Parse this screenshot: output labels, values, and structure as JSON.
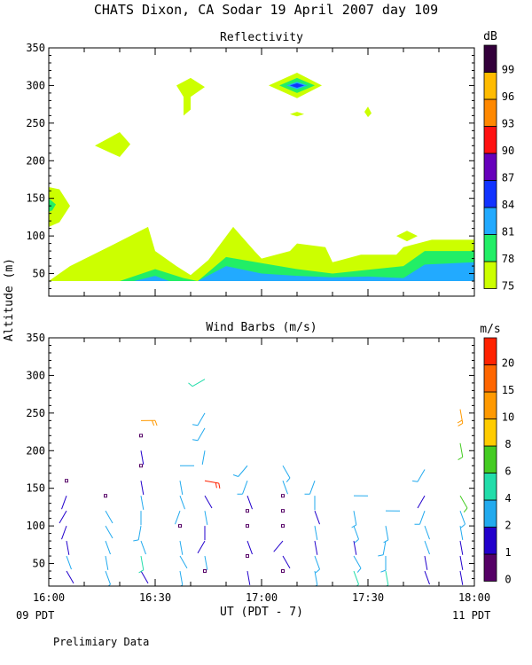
{
  "page": {
    "title": "CHATS Dixon, CA  Sodar  19 April 2007  day 109",
    "ylabel": "Altitude (m)",
    "xlabel": "UT  (PDT - 7)",
    "start_local": "09 PDT",
    "end_local": "11 PDT",
    "footer": "Prelimiary Data"
  },
  "colors": {
    "reflectivity": [
      "#ccff00",
      "#22ee66",
      "#22aaff",
      "#1133ff",
      "#6600bb",
      "#ff1111",
      "#ff8800",
      "#ffbb00",
      "#33003b"
    ],
    "wind": [
      "#550066",
      "#2200cc",
      "#22aaee",
      "#22ddaa",
      "#44cc22",
      "#ffcc00",
      "#ff9900",
      "#ff6600",
      "#ff2200",
      "#ff4400"
    ]
  },
  "chart_data": [
    {
      "type": "heatmap",
      "title": "Reflectivity",
      "colorbar_unit": "dB",
      "colorbar_levels": [
        "75",
        "78",
        "81",
        "84",
        "87",
        "90",
        "93",
        "96",
        "99"
      ],
      "x_ticks": [
        "16:00",
        "16:30",
        "17:00",
        "17:30",
        "18:00"
      ],
      "y_ticks": [
        "50",
        "100",
        "150",
        "200",
        "250",
        "300",
        "350"
      ],
      "xlim": [
        "16:00",
        "18:00"
      ],
      "ylim": [
        20,
        350
      ],
      "regions": [
        {
          "level": 0,
          "points": [
            [
              0,
              40
            ],
            [
              6,
              60
            ],
            [
              18,
              88
            ],
            [
              28,
              112
            ],
            [
              30,
              80
            ],
            [
              36,
              60
            ],
            [
              40,
              48
            ],
            [
              45,
              68
            ],
            [
              52,
              112
            ],
            [
              58,
              80
            ],
            [
              60,
              70
            ],
            [
              68,
              80
            ],
            [
              70,
              90
            ],
            [
              78,
              85
            ],
            [
              80,
              65
            ],
            [
              88,
              75
            ],
            [
              98,
              75
            ],
            [
              100,
              85
            ],
            [
              108,
              95
            ],
            [
              120,
              95
            ],
            [
              120,
              40
            ]
          ]
        },
        {
          "level": 0,
          "points": [
            [
              0,
              112
            ],
            [
              0,
              165
            ],
            [
              3,
              162
            ],
            [
              6,
              140
            ],
            [
              3,
              118
            ]
          ]
        },
        {
          "level": 0,
          "points": [
            [
              13,
              220
            ],
            [
              20,
              238
            ],
            [
              23,
              222
            ],
            [
              20,
              205
            ]
          ]
        },
        {
          "level": 0,
          "points": [
            [
              36,
              300
            ],
            [
              40,
              310
            ],
            [
              44,
              298
            ],
            [
              40,
              285
            ],
            [
              40,
              268
            ],
            [
              38,
              260
            ],
            [
              38,
              285
            ]
          ]
        },
        {
          "level": 0,
          "points": [
            [
              62,
              300
            ],
            [
              70,
              317
            ],
            [
              77,
              300
            ],
            [
              70,
              283
            ]
          ]
        },
        {
          "level": 0,
          "points": [
            [
              68,
              262
            ],
            [
              70,
              265
            ],
            [
              72,
              262
            ],
            [
              70,
              259
            ]
          ]
        },
        {
          "level": 0,
          "points": [
            [
              89,
              265
            ],
            [
              90,
              272
            ],
            [
              91,
              263
            ],
            [
              90,
              258
            ]
          ]
        },
        {
          "level": 0,
          "points": [
            [
              98,
              100
            ],
            [
              101,
              107
            ],
            [
              104,
              100
            ],
            [
              101,
              93
            ]
          ]
        },
        {
          "level": 1,
          "points": [
            [
              20,
              40
            ],
            [
              30,
              56
            ],
            [
              38,
              44
            ],
            [
              42,
              40
            ],
            [
              50,
              72
            ],
            [
              60,
              64
            ],
            [
              70,
              56
            ],
            [
              80,
              50
            ],
            [
              90,
              55
            ],
            [
              100,
              60
            ],
            [
              106,
              80
            ],
            [
              120,
              80
            ],
            [
              120,
              40
            ]
          ]
        },
        {
          "level": 1,
          "points": [
            [
              0,
              132
            ],
            [
              0,
              150
            ],
            [
              2,
              142
            ],
            [
              1,
              134
            ]
          ]
        },
        {
          "level": 1,
          "points": [
            [
              65,
              300
            ],
            [
              70,
              310
            ],
            [
              75,
              300
            ],
            [
              70,
              290
            ]
          ]
        },
        {
          "level": 2,
          "points": [
            [
              24,
              40
            ],
            [
              30,
              47
            ],
            [
              34,
              40
            ],
            [
              42,
              40
            ],
            [
              50,
              60
            ],
            [
              60,
              50
            ],
            [
              70,
              47
            ],
            [
              80,
              45
            ],
            [
              90,
              46
            ],
            [
              100,
              44
            ],
            [
              106,
              62
            ],
            [
              120,
              65
            ],
            [
              120,
              40
            ]
          ]
        },
        {
          "level": 2,
          "points": [
            [
              67,
              300
            ],
            [
              70,
              305
            ],
            [
              73,
              300
            ],
            [
              70,
              295
            ]
          ]
        },
        {
          "level": 3,
          "points": [
            [
              68,
              300
            ],
            [
              70,
              303
            ],
            [
              72,
              300
            ],
            [
              70,
              297
            ]
          ]
        }
      ]
    },
    {
      "type": "scatter",
      "title": "Wind Barbs (m/s)",
      "colorbar_unit": "m/s",
      "colorbar_levels": [
        "0",
        "1",
        "2",
        "4",
        "6",
        "8",
        "10",
        "15",
        "20"
      ],
      "x_ticks": [
        "16:00",
        "16:30",
        "17:00",
        "17:30",
        "18:00"
      ],
      "y_ticks": [
        "50",
        "100",
        "150",
        "200",
        "250",
        "300",
        "350"
      ],
      "xlim": [
        "16:00",
        "18:00"
      ],
      "ylim": [
        20,
        350
      ],
      "barbs": [
        {
          "t": 5,
          "z": 40,
          "dir": 150,
          "speed": 1.5
        },
        {
          "t": 5,
          "z": 60,
          "dir": 160,
          "speed": 2.5
        },
        {
          "t": 5,
          "z": 80,
          "dir": 170,
          "speed": 1.5
        },
        {
          "t": 5,
          "z": 100,
          "dir": 200,
          "speed": 1.5
        },
        {
          "t": 5,
          "z": 120,
          "dir": 210,
          "speed": 1.5
        },
        {
          "t": 5,
          "z": 140,
          "dir": 200,
          "speed": 1.5
        },
        {
          "t": 5,
          "z": 160,
          "dir": 0,
          "speed": 0.5
        },
        {
          "t": 16,
          "z": 40,
          "dir": 160,
          "speed": 3
        },
        {
          "t": 16,
          "z": 60,
          "dir": 170,
          "speed": 2.5
        },
        {
          "t": 16,
          "z": 80,
          "dir": 160,
          "speed": 2.5
        },
        {
          "t": 16,
          "z": 100,
          "dir": 150,
          "speed": 2
        },
        {
          "t": 16,
          "z": 120,
          "dir": 150,
          "speed": 2
        },
        {
          "t": 16,
          "z": 140,
          "dir": 0,
          "speed": 0.5
        },
        {
          "t": 26,
          "z": 40,
          "dir": 150,
          "speed": 1.5
        },
        {
          "t": 26,
          "z": 60,
          "dir": 170,
          "speed": 5
        },
        {
          "t": 26,
          "z": 80,
          "dir": 160,
          "speed": 2.5
        },
        {
          "t": 26,
          "z": 100,
          "dir": 190,
          "speed": 3
        },
        {
          "t": 26,
          "z": 120,
          "dir": 180,
          "speed": 2.5
        },
        {
          "t": 26,
          "z": 140,
          "dir": 170,
          "speed": 2.5
        },
        {
          "t": 26,
          "z": 160,
          "dir": 170,
          "speed": 1.5
        },
        {
          "t": 26,
          "z": 180,
          "dir": 0,
          "speed": 0.5
        },
        {
          "t": 26,
          "z": 200,
          "dir": 170,
          "speed": 1.5
        },
        {
          "t": 26,
          "z": 220,
          "dir": 0,
          "speed": 0.5
        },
        {
          "t": 26,
          "z": 240,
          "dir": 90,
          "speed": 11
        },
        {
          "t": 37,
          "z": 40,
          "dir": 170,
          "speed": 3
        },
        {
          "t": 37,
          "z": 60,
          "dir": 150,
          "speed": 2.5
        },
        {
          "t": 37,
          "z": 80,
          "dir": 170,
          "speed": 2.5
        },
        {
          "t": 37,
          "z": 100,
          "dir": 0,
          "speed": 0.5
        },
        {
          "t": 37,
          "z": 120,
          "dir": 200,
          "speed": 2.5
        },
        {
          "t": 37,
          "z": 140,
          "dir": 160,
          "speed": 2.5
        },
        {
          "t": 37,
          "z": 160,
          "dir": 170,
          "speed": 2.5
        },
        {
          "t": 37,
          "z": 180,
          "dir": 90,
          "speed": 2.5
        },
        {
          "t": 44,
          "z": 40,
          "dir": 0,
          "speed": 0.5
        },
        {
          "t": 44,
          "z": 60,
          "dir": 170,
          "speed": 2.5
        },
        {
          "t": 44,
          "z": 80,
          "dir": 210,
          "speed": 1.5
        },
        {
          "t": 44,
          "z": 100,
          "dir": 180,
          "speed": 1.5
        },
        {
          "t": 44,
          "z": 120,
          "dir": 170,
          "speed": 2.5
        },
        {
          "t": 44,
          "z": 140,
          "dir": 150,
          "speed": 1.5
        },
        {
          "t": 44,
          "z": 160,
          "dir": 100,
          "speed": 21
        },
        {
          "t": 44,
          "z": 200,
          "dir": 190,
          "speed": 2
        },
        {
          "t": 44,
          "z": 230,
          "dir": 210,
          "speed": 3
        },
        {
          "t": 44,
          "z": 250,
          "dir": 210,
          "speed": 3
        },
        {
          "t": 44,
          "z": 295,
          "dir": 240,
          "speed": 5
        },
        {
          "t": 56,
          "z": 40,
          "dir": 170,
          "speed": 1.5
        },
        {
          "t": 56,
          "z": 60,
          "dir": 0,
          "speed": 0.5
        },
        {
          "t": 56,
          "z": 80,
          "dir": 160,
          "speed": 1.5
        },
        {
          "t": 56,
          "z": 100,
          "dir": 0,
          "speed": 0.5
        },
        {
          "t": 56,
          "z": 120,
          "dir": 0,
          "speed": 0.5
        },
        {
          "t": 56,
          "z": 140,
          "dir": 160,
          "speed": 1.5
        },
        {
          "t": 56,
          "z": 160,
          "dir": 200,
          "speed": 3
        },
        {
          "t": 56,
          "z": 180,
          "dir": 220,
          "speed": 3
        },
        {
          "t": 66,
          "z": 40,
          "dir": 0,
          "speed": 0.5
        },
        {
          "t": 66,
          "z": 60,
          "dir": 150,
          "speed": 1.5
        },
        {
          "t": 66,
          "z": 80,
          "dir": 220,
          "speed": 1.5
        },
        {
          "t": 66,
          "z": 100,
          "dir": 0,
          "speed": 0.5
        },
        {
          "t": 66,
          "z": 120,
          "dir": 0,
          "speed": 0.5
        },
        {
          "t": 66,
          "z": 140,
          "dir": 0,
          "speed": 0.5
        },
        {
          "t": 66,
          "z": 160,
          "dir": 160,
          "speed": 2.5
        },
        {
          "t": 66,
          "z": 180,
          "dir": 150,
          "speed": 3
        },
        {
          "t": 75,
          "z": 40,
          "dir": 170,
          "speed": 3
        },
        {
          "t": 75,
          "z": 60,
          "dir": 160,
          "speed": 3
        },
        {
          "t": 75,
          "z": 80,
          "dir": 170,
          "speed": 1.5
        },
        {
          "t": 75,
          "z": 100,
          "dir": 170,
          "speed": 2.5
        },
        {
          "t": 75,
          "z": 120,
          "dir": 160,
          "speed": 1.5
        },
        {
          "t": 75,
          "z": 140,
          "dir": 180,
          "speed": 2.5
        },
        {
          "t": 75,
          "z": 160,
          "dir": 200,
          "speed": 3
        },
        {
          "t": 86,
          "z": 40,
          "dir": 160,
          "speed": 5
        },
        {
          "t": 86,
          "z": 60,
          "dir": 150,
          "speed": 3
        },
        {
          "t": 86,
          "z": 80,
          "dir": 170,
          "speed": 1.5
        },
        {
          "t": 86,
          "z": 100,
          "dir": 160,
          "speed": 3
        },
        {
          "t": 86,
          "z": 120,
          "dir": 170,
          "speed": 3
        },
        {
          "t": 86,
          "z": 140,
          "dir": 90,
          "speed": 2
        },
        {
          "t": 95,
          "z": 40,
          "dir": 170,
          "speed": 5
        },
        {
          "t": 95,
          "z": 60,
          "dir": 180,
          "speed": 3
        },
        {
          "t": 95,
          "z": 80,
          "dir": 190,
          "speed": 3
        },
        {
          "t": 95,
          "z": 100,
          "dir": 170,
          "speed": 3
        },
        {
          "t": 95,
          "z": 120,
          "dir": 90,
          "speed": 2.5
        },
        {
          "t": 106,
          "z": 40,
          "dir": 160,
          "speed": 1.5
        },
        {
          "t": 106,
          "z": 60,
          "dir": 170,
          "speed": 1.5
        },
        {
          "t": 106,
          "z": 80,
          "dir": 160,
          "speed": 2.5
        },
        {
          "t": 106,
          "z": 100,
          "dir": 160,
          "speed": 2.5
        },
        {
          "t": 106,
          "z": 120,
          "dir": 200,
          "speed": 3
        },
        {
          "t": 106,
          "z": 140,
          "dir": 210,
          "speed": 1.5
        },
        {
          "t": 106,
          "z": 175,
          "dir": 210,
          "speed": 3
        },
        {
          "t": 116,
          "z": 40,
          "dir": 170,
          "speed": 1.5
        },
        {
          "t": 116,
          "z": 60,
          "dir": 170,
          "speed": 1.5
        },
        {
          "t": 116,
          "z": 80,
          "dir": 170,
          "speed": 1.5
        },
        {
          "t": 116,
          "z": 100,
          "dir": 170,
          "speed": 2.5
        },
        {
          "t": 116,
          "z": 120,
          "dir": 160,
          "speed": 3
        },
        {
          "t": 116,
          "z": 140,
          "dir": 150,
          "speed": 6
        },
        {
          "t": 116,
          "z": 210,
          "dir": 170,
          "speed": 6
        },
        {
          "t": 116,
          "z": 255,
          "dir": 170,
          "speed": 10
        }
      ]
    }
  ]
}
